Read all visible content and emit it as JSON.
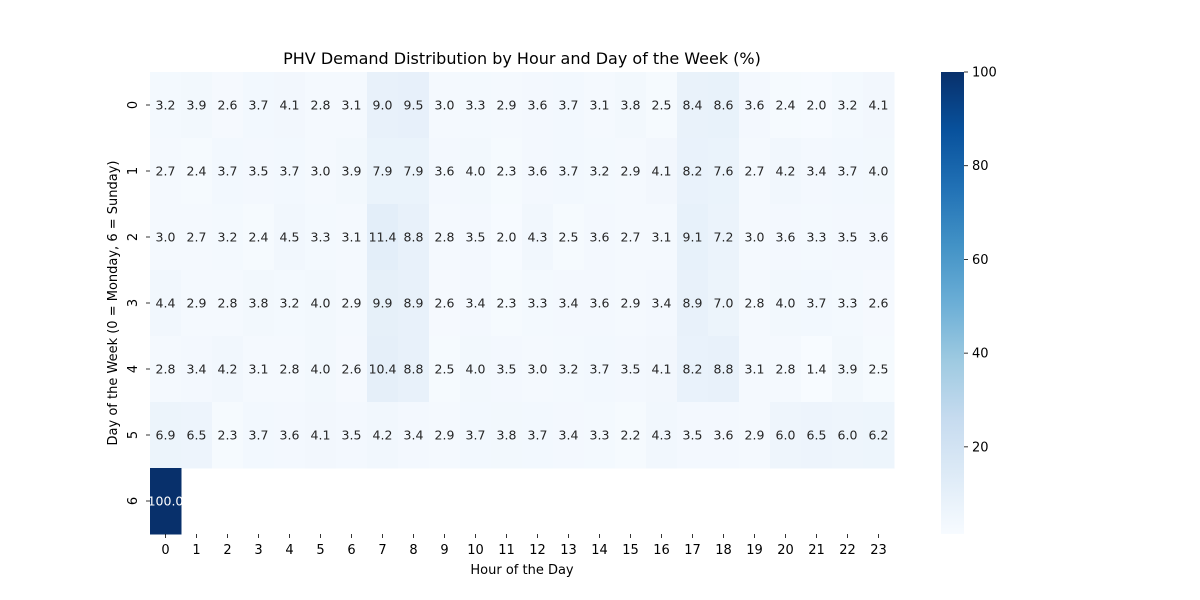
{
  "chart_data": {
    "type": "heatmap",
    "title": "PHV Demand Distribution by Hour and Day of the Week (%)",
    "xlabel": "Hour of the Day",
    "ylabel": "Day of the Week (0 = Monday, 6 = Sunday)",
    "x_categories": [
      "0",
      "1",
      "2",
      "3",
      "4",
      "5",
      "6",
      "7",
      "8",
      "9",
      "10",
      "11",
      "12",
      "13",
      "14",
      "15",
      "16",
      "17",
      "18",
      "19",
      "20",
      "21",
      "22",
      "23"
    ],
    "y_categories": [
      "0",
      "1",
      "2",
      "3",
      "4",
      "5",
      "6"
    ],
    "values": [
      [
        3.2,
        3.9,
        2.6,
        3.7,
        4.1,
        2.8,
        3.1,
        9.0,
        9.5,
        3.0,
        3.3,
        2.9,
        3.6,
        3.7,
        3.1,
        3.8,
        2.5,
        8.4,
        8.6,
        3.6,
        2.4,
        2.0,
        3.2,
        4.1
      ],
      [
        2.7,
        2.4,
        3.7,
        3.5,
        3.7,
        3.0,
        3.9,
        7.9,
        7.9,
        3.6,
        4.0,
        2.3,
        3.6,
        3.7,
        3.2,
        2.9,
        4.1,
        8.2,
        7.6,
        2.7,
        4.2,
        3.4,
        3.7,
        4.0
      ],
      [
        3.0,
        2.7,
        3.2,
        2.4,
        4.5,
        3.3,
        3.1,
        11.4,
        8.8,
        2.8,
        3.5,
        2.0,
        4.3,
        2.5,
        3.6,
        2.7,
        3.1,
        9.1,
        7.2,
        3.0,
        3.6,
        3.3,
        3.5,
        3.6
      ],
      [
        4.4,
        2.9,
        2.8,
        3.8,
        3.2,
        4.0,
        2.9,
        9.9,
        8.9,
        2.6,
        3.4,
        2.3,
        3.3,
        3.4,
        3.6,
        2.9,
        3.4,
        8.9,
        7.0,
        2.8,
        4.0,
        3.7,
        3.3,
        2.6
      ],
      [
        2.8,
        3.4,
        4.2,
        3.1,
        2.8,
        4.0,
        2.6,
        10.4,
        8.8,
        2.5,
        4.0,
        3.5,
        3.0,
        3.2,
        3.7,
        3.5,
        4.1,
        8.2,
        8.8,
        3.1,
        2.8,
        1.4,
        3.9,
        2.5
      ],
      [
        6.9,
        6.5,
        2.3,
        3.7,
        3.6,
        4.1,
        3.5,
        4.2,
        3.4,
        2.9,
        3.7,
        3.8,
        3.7,
        3.4,
        3.3,
        2.2,
        4.3,
        3.5,
        3.6,
        2.9,
        6.0,
        6.5,
        6.0,
        6.2
      ],
      [
        100.0,
        null,
        null,
        null,
        null,
        null,
        null,
        null,
        null,
        null,
        null,
        null,
        null,
        null,
        null,
        null,
        null,
        null,
        null,
        null,
        null,
        null,
        null,
        null
      ]
    ],
    "value_format": "1 decimal",
    "colormap": "Blues",
    "colorbar": {
      "range": [
        1.4,
        100
      ],
      "ticks": [
        20,
        40,
        60,
        80,
        100
      ]
    },
    "grid": false,
    "legend": "colorbar-right"
  }
}
